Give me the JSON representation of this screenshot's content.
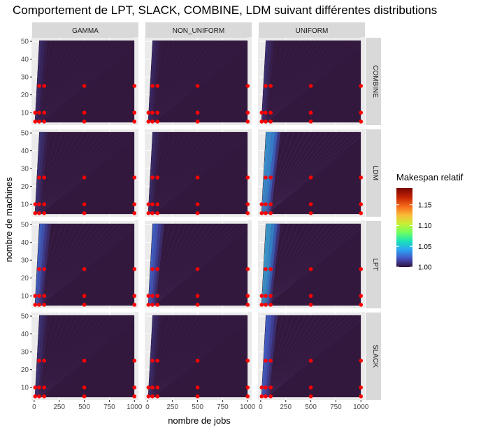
{
  "chart_data": {
    "type": "heatmap",
    "title": "Comportement de LPT, SLACK, COMBINE, LDM suivant différentes distributions",
    "xlabel": "nombre de jobs",
    "ylabel": "nombre de machines",
    "columns": [
      "GAMMA",
      "NON_UNIFORM",
      "UNIFORM"
    ],
    "rows": [
      "COMBINE",
      "LDM",
      "LPT",
      "SLACK"
    ],
    "x_ticks": [
      0,
      250,
      500,
      750,
      1000
    ],
    "y_ticks": [
      10,
      20,
      30,
      40,
      50
    ],
    "xlim": [
      -20,
      1040
    ],
    "ylim": [
      3,
      52
    ],
    "grid": true,
    "colorbar": {
      "title": "Makespan relatif",
      "ticks": [
        1.0,
        1.05,
        1.1,
        1.15
      ],
      "range": [
        1.0,
        1.19
      ],
      "palette": [
        "#30123b",
        "#4454c4",
        "#2aa6f4",
        "#1ae4b6",
        "#72fe5e",
        "#c9ef34",
        "#fbb938",
        "#f56918",
        "#c42503",
        "#7a0403"
      ]
    },
    "red_points": {
      "jobs": [
        10,
        50,
        100,
        500,
        1000
      ],
      "machines": [
        5,
        10,
        25
      ]
    },
    "panel_intensity": {
      "COMBINE": {
        "GAMMA": 0.03,
        "NON_UNIFORM": 0.01,
        "UNIFORM": 0.08
      },
      "LDM": {
        "GAMMA": 0.15,
        "NON_UNIFORM": 0.04,
        "UNIFORM": 0.4
      },
      "LPT": {
        "GAMMA": 0.18,
        "NON_UNIFORM": 0.22,
        "UNIFORM": 0.32
      },
      "SLACK": {
        "GAMMA": 0.12,
        "NON_UNIFORM": 0.05,
        "UNIFORM": 0.28
      }
    },
    "legend_position": "right"
  }
}
